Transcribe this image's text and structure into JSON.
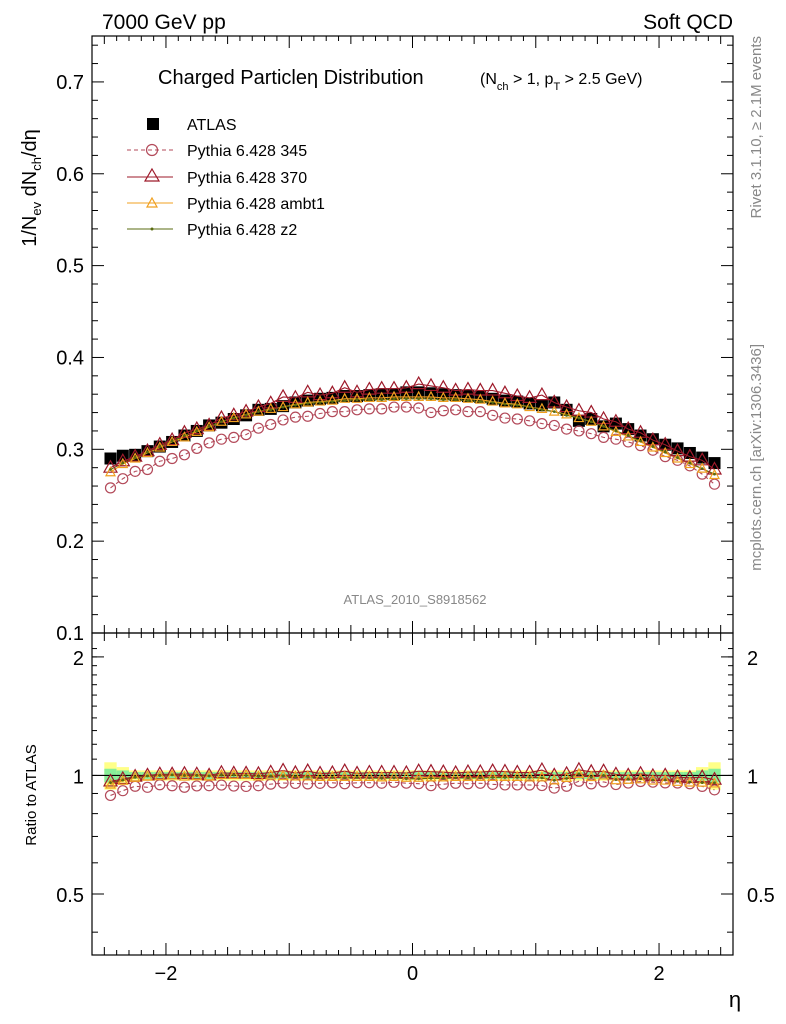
{
  "header": {
    "left": "7000 GeV pp",
    "right": "Soft QCD"
  },
  "title": {
    "main": "Charged Particleη Distribution",
    "sub": "(N ch > 1, p T > 2.5 GeV)",
    "sub_parts": [
      "(N",
      "ch",
      " > 1, p",
      "T",
      " > 2.5 GeV)"
    ]
  },
  "side_texts": {
    "rivet": "Rivet 3.1.10, ≥ 2.1M events",
    "mcplots": "mcplots.cern.ch [arXiv:1306.3436]"
  },
  "analysis_label": "ATLAS_2010_S8918562",
  "colors": {
    "atlas": "#000000",
    "p345": "#b34a5a",
    "p370": "#9e1a2a",
    "ambt1": "#f0a020",
    "z2": "#5a6b10",
    "band_yellow": "#ffff88",
    "band_green": "#88ee99"
  },
  "chart_data": [
    {
      "type": "scatter",
      "panel": "main",
      "ylabel_parts": [
        "1/N",
        "ev",
        " dN",
        "ch",
        "/dη"
      ],
      "xlim": [
        -2.6,
        2.6
      ],
      "ylim": [
        0.1,
        0.75
      ],
      "yticks": [
        0.1,
        0.2,
        0.3,
        0.4,
        0.5,
        0.6,
        0.7
      ],
      "ytick_labels": [
        "0.1",
        "0.2",
        "0.3",
        "0.4",
        "0.5",
        "0.6",
        "0.7"
      ],
      "x": [
        -2.45,
        -2.35,
        -2.25,
        -2.15,
        -2.05,
        -1.95,
        -1.85,
        -1.75,
        -1.65,
        -1.55,
        -1.45,
        -1.35,
        -1.25,
        -1.15,
        -1.05,
        -0.95,
        -0.85,
        -0.75,
        -0.65,
        -0.55,
        -0.45,
        -0.35,
        -0.25,
        -0.15,
        -0.05,
        0.05,
        0.15,
        0.25,
        0.35,
        0.45,
        0.55,
        0.65,
        0.75,
        0.85,
        0.95,
        1.05,
        1.15,
        1.25,
        1.35,
        1.45,
        1.55,
        1.65,
        1.75,
        1.85,
        1.95,
        2.05,
        2.15,
        2.25,
        2.35,
        2.45
      ],
      "legend": [
        {
          "label": "ATLAS",
          "marker": "square"
        },
        {
          "label": "Pythia 6.428 345",
          "marker": "circle",
          "style": "dashed"
        },
        {
          "label": "Pythia 6.428 370",
          "marker": "triangle"
        },
        {
          "label": "Pythia 6.428 ambt1",
          "marker": "triangle-small"
        },
        {
          "label": "Pythia 6.428 z2",
          "marker": "dot"
        }
      ],
      "series": [
        {
          "name": "ATLAS",
          "values": [
            0.29,
            0.293,
            0.294,
            0.298,
            0.303,
            0.308,
            0.315,
            0.32,
            0.326,
            0.329,
            0.333,
            0.337,
            0.343,
            0.344,
            0.347,
            0.351,
            0.353,
            0.355,
            0.356,
            0.358,
            0.358,
            0.359,
            0.36,
            0.36,
            0.362,
            0.362,
            0.361,
            0.36,
            0.359,
            0.358,
            0.357,
            0.355,
            0.353,
            0.352,
            0.35,
            0.348,
            0.351,
            0.343,
            0.331,
            0.333,
            0.325,
            0.328,
            0.322,
            0.315,
            0.311,
            0.305,
            0.301,
            0.296,
            0.291,
            0.285
          ]
        },
        {
          "name": "Pythia 6.428 345",
          "values": [
            0.258,
            0.268,
            0.276,
            0.278,
            0.287,
            0.29,
            0.294,
            0.301,
            0.307,
            0.311,
            0.313,
            0.316,
            0.323,
            0.327,
            0.332,
            0.335,
            0.336,
            0.339,
            0.341,
            0.341,
            0.343,
            0.344,
            0.344,
            0.346,
            0.346,
            0.345,
            0.34,
            0.342,
            0.343,
            0.341,
            0.341,
            0.337,
            0.334,
            0.333,
            0.331,
            0.328,
            0.326,
            0.322,
            0.32,
            0.317,
            0.313,
            0.311,
            0.308,
            0.304,
            0.299,
            0.292,
            0.288,
            0.282,
            0.273,
            0.262
          ]
        },
        {
          "name": "Pythia 6.428 370",
          "values": [
            0.28,
            0.287,
            0.292,
            0.298,
            0.305,
            0.31,
            0.318,
            0.322,
            0.326,
            0.334,
            0.337,
            0.341,
            0.346,
            0.35,
            0.357,
            0.356,
            0.362,
            0.359,
            0.361,
            0.367,
            0.362,
            0.365,
            0.366,
            0.366,
            0.367,
            0.371,
            0.369,
            0.367,
            0.364,
            0.365,
            0.364,
            0.364,
            0.361,
            0.358,
            0.356,
            0.359,
            0.351,
            0.346,
            0.342,
            0.34,
            0.333,
            0.33,
            0.322,
            0.318,
            0.31,
            0.305,
            0.298,
            0.292,
            0.288,
            0.278
          ]
        },
        {
          "name": "Pythia 6.428 ambt1",
          "values": [
            0.275,
            0.284,
            0.29,
            0.296,
            0.302,
            0.308,
            0.313,
            0.319,
            0.324,
            0.33,
            0.334,
            0.338,
            0.341,
            0.344,
            0.346,
            0.349,
            0.351,
            0.352,
            0.353,
            0.355,
            0.355,
            0.356,
            0.356,
            0.357,
            0.357,
            0.357,
            0.357,
            0.356,
            0.356,
            0.355,
            0.354,
            0.352,
            0.35,
            0.349,
            0.346,
            0.344,
            0.341,
            0.338,
            0.334,
            0.33,
            0.325,
            0.319,
            0.314,
            0.308,
            0.302,
            0.296,
            0.29,
            0.284,
            0.279,
            0.272
          ]
        },
        {
          "name": "Pythia 6.428 z2",
          "values": [
            0.278,
            0.285,
            0.291,
            0.297,
            0.303,
            0.309,
            0.315,
            0.32,
            0.325,
            0.33,
            0.334,
            0.337,
            0.341,
            0.343,
            0.346,
            0.348,
            0.35,
            0.351,
            0.352,
            0.353,
            0.354,
            0.354,
            0.354,
            0.355,
            0.355,
            0.355,
            0.355,
            0.354,
            0.354,
            0.353,
            0.352,
            0.351,
            0.349,
            0.348,
            0.346,
            0.343,
            0.341,
            0.337,
            0.334,
            0.33,
            0.325,
            0.32,
            0.315,
            0.309,
            0.303,
            0.297,
            0.291,
            0.285,
            0.279,
            0.273
          ]
        }
      ]
    },
    {
      "type": "scatter",
      "panel": "ratio",
      "ylabel": "Ratio to ATLAS",
      "xlabel": "η",
      "xlim": [
        -2.6,
        2.6
      ],
      "ylim": [
        0.35,
        2.3
      ],
      "yscale": "log",
      "yticks": [
        0.5,
        1,
        2
      ],
      "ytick_labels": [
        "0.5",
        "1",
        "2"
      ],
      "xticks": [
        -2,
        0,
        2
      ],
      "xtick_labels": [
        "−2",
        "0",
        "2"
      ],
      "reference": 1.0,
      "band_yellow": {
        "halfwidth": [
          0.08,
          0.05,
          0.03,
          0.03,
          0.03,
          0.03,
          0.03,
          0.03,
          0.03,
          0.03,
          0.03,
          0.03,
          0.03,
          0.03,
          0.03,
          0.03,
          0.03,
          0.03,
          0.03,
          0.03,
          0.03,
          0.03,
          0.03,
          0.03,
          0.03,
          0.03,
          0.03,
          0.03,
          0.03,
          0.03,
          0.03,
          0.03,
          0.03,
          0.03,
          0.03,
          0.03,
          0.03,
          0.03,
          0.03,
          0.03,
          0.03,
          0.03,
          0.03,
          0.03,
          0.03,
          0.03,
          0.03,
          0.03,
          0.05,
          0.08
        ]
      },
      "band_green": {
        "halfwidth": [
          0.04,
          0.03,
          0.02,
          0.02,
          0.02,
          0.02,
          0.02,
          0.02,
          0.02,
          0.02,
          0.02,
          0.02,
          0.02,
          0.02,
          0.02,
          0.02,
          0.02,
          0.02,
          0.02,
          0.02,
          0.02,
          0.02,
          0.02,
          0.02,
          0.02,
          0.02,
          0.02,
          0.02,
          0.02,
          0.02,
          0.02,
          0.02,
          0.02,
          0.02,
          0.02,
          0.02,
          0.02,
          0.02,
          0.02,
          0.02,
          0.02,
          0.02,
          0.02,
          0.02,
          0.02,
          0.02,
          0.02,
          0.02,
          0.03,
          0.04
        ]
      }
    }
  ]
}
